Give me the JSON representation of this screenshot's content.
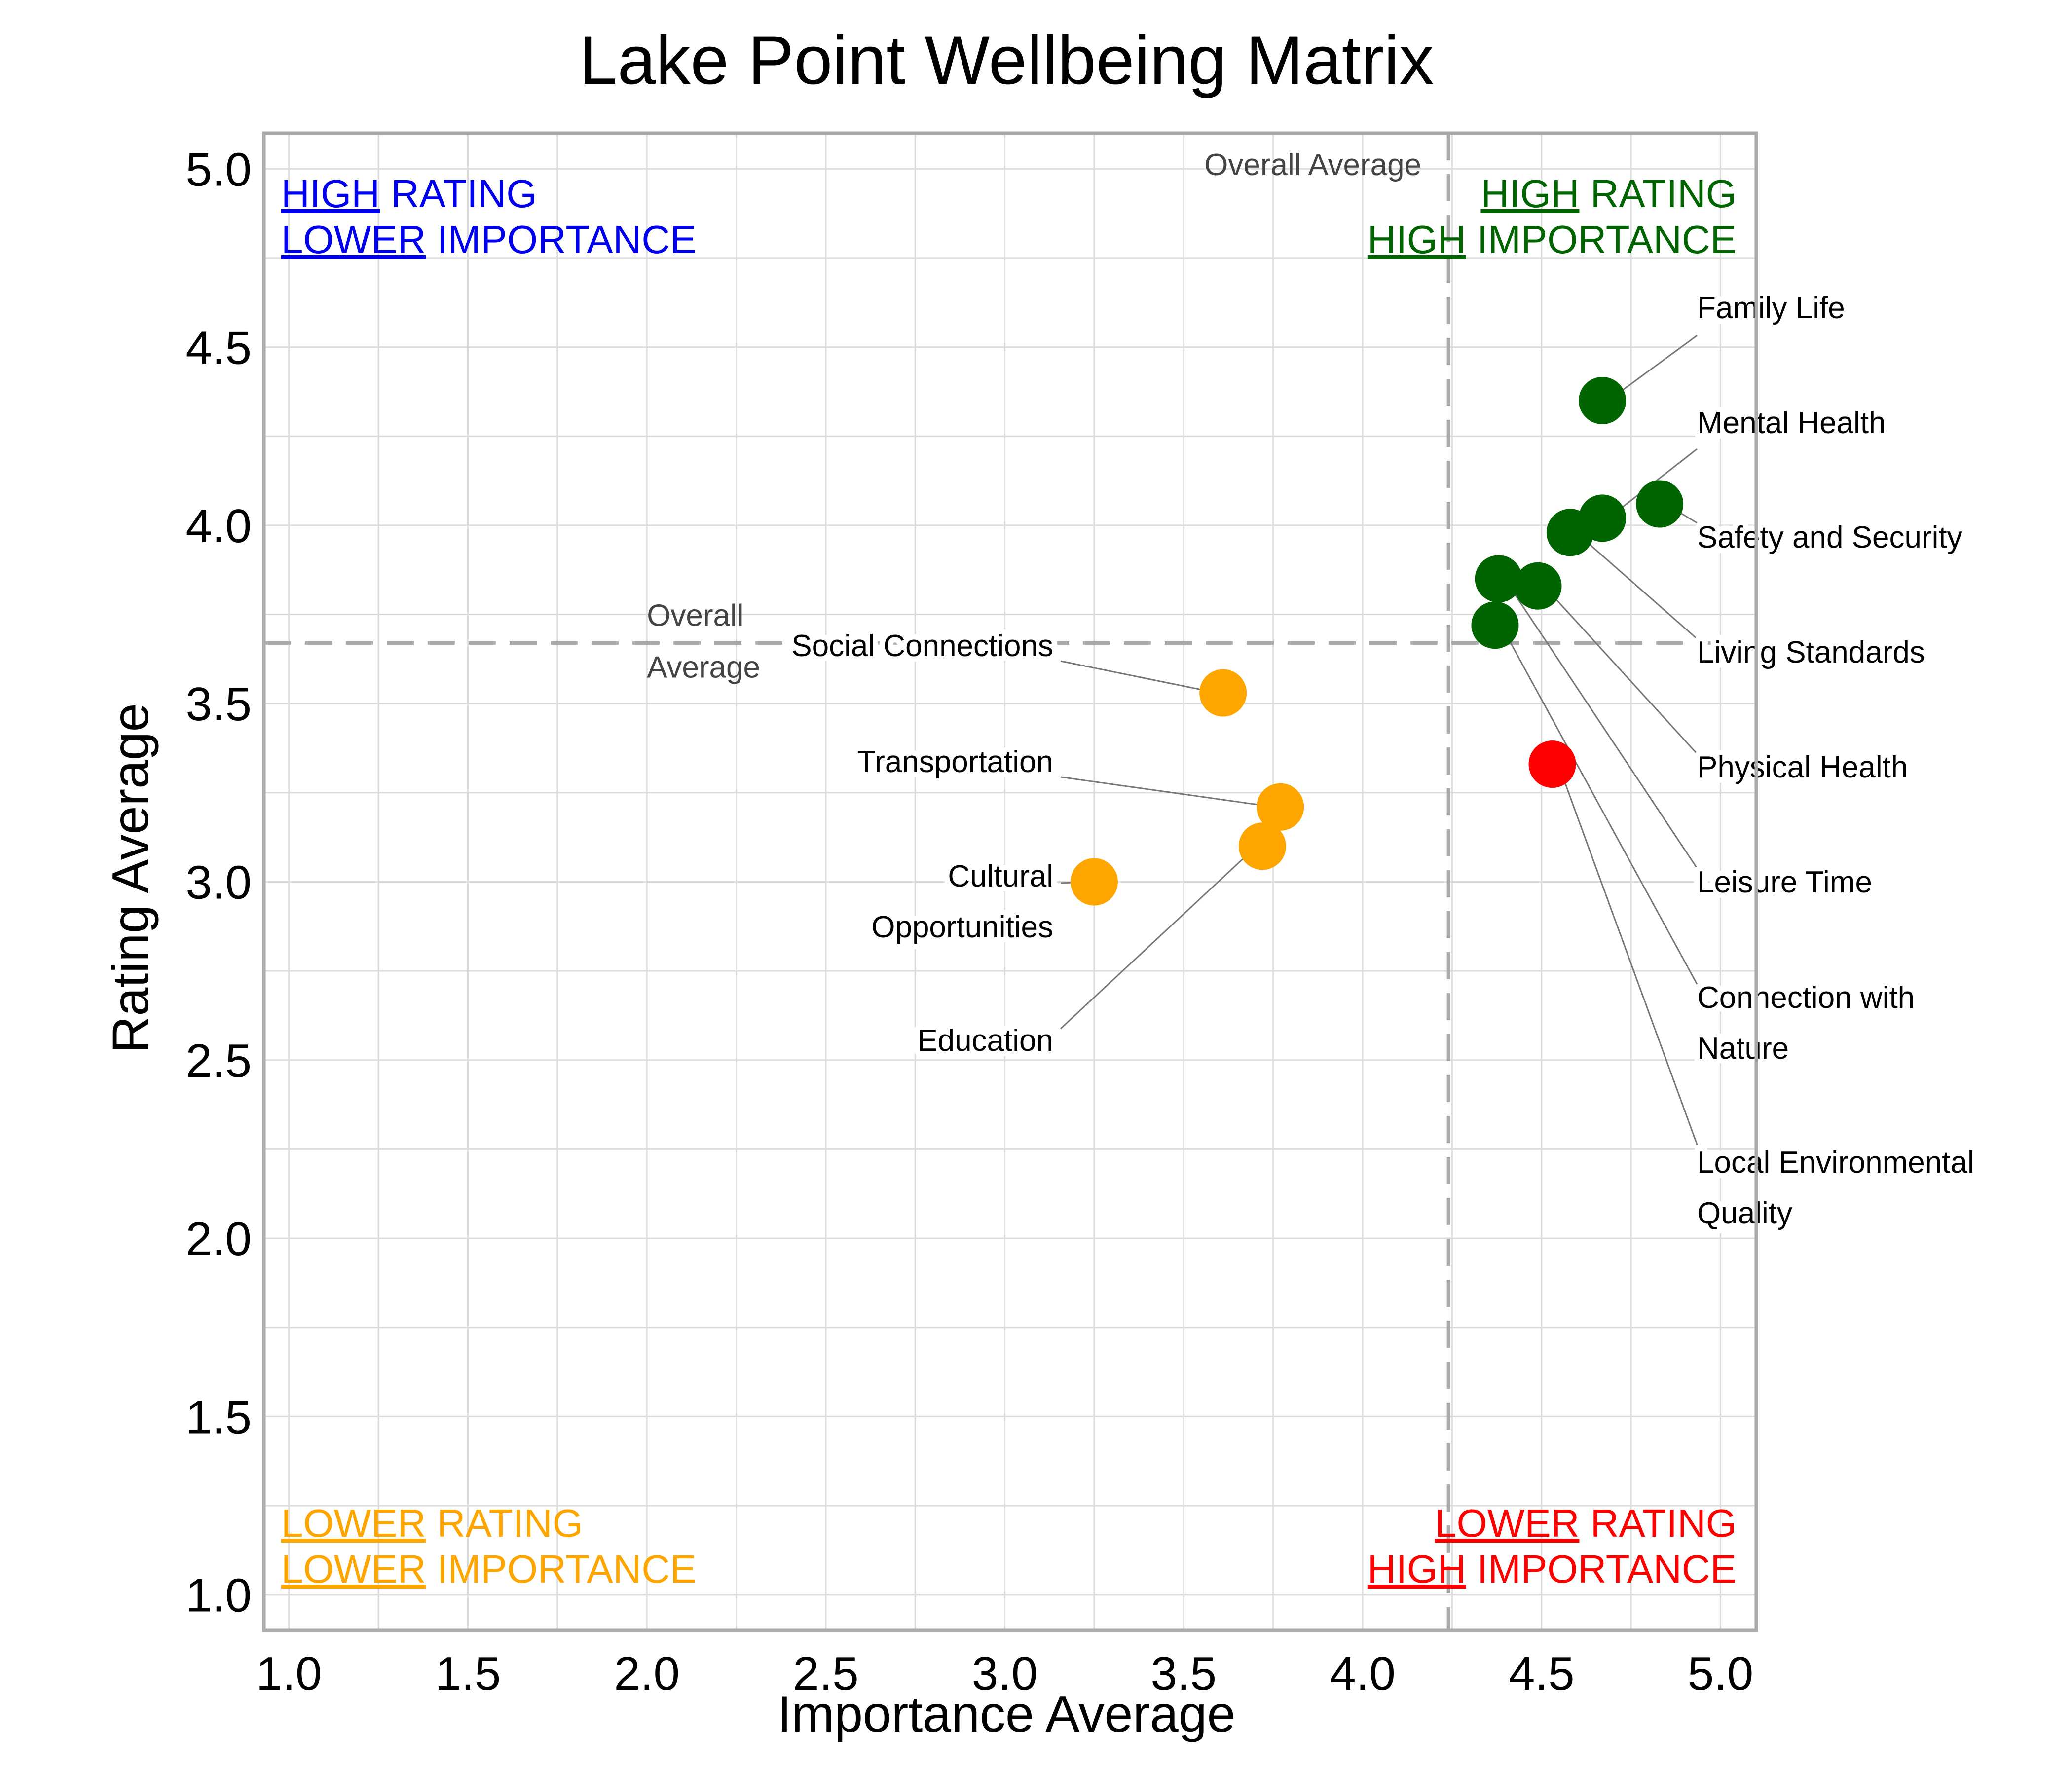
{
  "chart_data": {
    "type": "scatter",
    "title": "Lake Point Wellbeing Matrix",
    "xlabel": "Importance Average",
    "ylabel": "Rating Average",
    "xlim": [
      0.93,
      5.1
    ],
    "ylim": [
      0.9,
      5.1
    ],
    "x_ticks": [
      "1.0",
      "1.5",
      "2.0",
      "2.5",
      "3.0",
      "3.5",
      "4.0",
      "4.5",
      "5.0"
    ],
    "y_ticks": [
      "1.0",
      "1.5",
      "2.0",
      "2.5",
      "3.0",
      "3.5",
      "4.0",
      "4.5",
      "5.0"
    ],
    "grid": true,
    "reference_lines": {
      "x_average": 4.24,
      "y_average": 3.67,
      "x_label": "Overall Average",
      "y_label_line1": "Overall",
      "y_label_line2": "Average"
    },
    "colors": {
      "high_high": "#006400",
      "high_low": "#0000ee",
      "low_low": "#ffa500",
      "low_high": "#ff0000",
      "grid": "#dcdcdc",
      "axis": "#aaaaaa",
      "reference": "#aaaaaa",
      "leader": "#777777"
    },
    "quadrants": {
      "top_left": {
        "line1_u": "HIGH",
        "line1_rest": " RATING",
        "line2_u": "LOWER",
        "line2_rest": " IMPORTANCE",
        "color": "#0000ee"
      },
      "top_right": {
        "line1_u": "HIGH",
        "line1_rest": " RATING",
        "line2_u": "HIGH",
        "line2_rest": " IMPORTANCE",
        "color": "#006400"
      },
      "bottom_left": {
        "line1_u": "LOWER",
        "line1_rest": " RATING",
        "line2_u": "LOWER",
        "line2_rest": " IMPORTANCE",
        "color": "#ffa500"
      },
      "bottom_right": {
        "line1_u": "LOWER",
        "line1_rest": " RATING",
        "line2_u": "HIGH",
        "line2_rest": " IMPORTANCE",
        "color": "#ff0000"
      }
    },
    "points": [
      {
        "label": "Family Life",
        "x": 4.67,
        "y": 4.35,
        "color": "#006400"
      },
      {
        "label": "Mental Health",
        "x": 4.67,
        "y": 4.02,
        "color": "#006400"
      },
      {
        "label": "Safety and Security",
        "x": 4.83,
        "y": 4.06,
        "color": "#006400"
      },
      {
        "label": "Living Standards",
        "x": 4.58,
        "y": 3.98,
        "color": "#006400"
      },
      {
        "label": "Physical Health",
        "x": 4.49,
        "y": 3.83,
        "color": "#006400"
      },
      {
        "label": "Leisure Time",
        "x": 4.38,
        "y": 3.85,
        "color": "#006400"
      },
      {
        "label": "Connection with Nature",
        "x": 4.37,
        "y": 3.72,
        "color": "#006400"
      },
      {
        "label": "Local Environmental Quality",
        "x": 4.53,
        "y": 3.33,
        "color": "#ff0000"
      },
      {
        "label": "Social Connections",
        "x": 3.61,
        "y": 3.53,
        "color": "#ffa500"
      },
      {
        "label": "Transportation",
        "x": 3.77,
        "y": 3.21,
        "color": "#ffa500"
      },
      {
        "label": "Cultural Opportunities",
        "x": 3.25,
        "y": 3.0,
        "color": "#ffa500"
      },
      {
        "label": "Education",
        "x": 3.72,
        "y": 3.1,
        "color": "#ffa500"
      }
    ]
  }
}
